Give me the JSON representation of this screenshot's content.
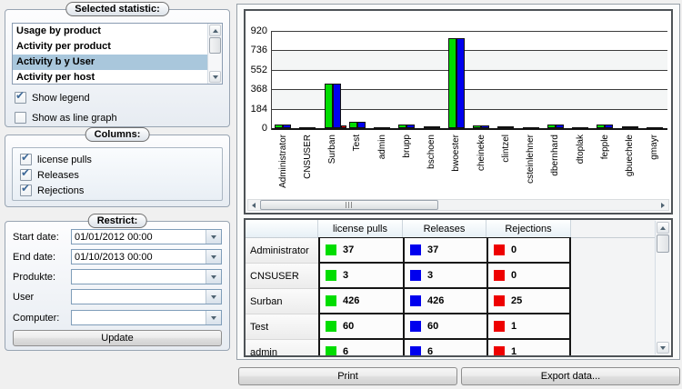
{
  "left_panel": {
    "statistic_group": {
      "caption": "Selected statistic:",
      "items": [
        "Usage by product",
        "Activity per product",
        "Activity b y User",
        "Activity per host"
      ],
      "selected_index": 2,
      "show_legend": {
        "label": "Show legend",
        "checked": true
      },
      "show_line_graph": {
        "label": "Show as line graph",
        "checked": false
      }
    },
    "columns_group": {
      "caption": "Columns:",
      "items": [
        "license pulls",
        "Releases",
        "Rejections"
      ],
      "checked": [
        true,
        true,
        true
      ]
    },
    "restrict_group": {
      "caption": "Restrict:",
      "fields": [
        {
          "label": "Start date:",
          "value": "01/01/2012 00:00"
        },
        {
          "label": "End date:",
          "value": "01/10/2013 00:00"
        },
        {
          "label": "Produkte:",
          "value": ""
        },
        {
          "label": "User",
          "value": ""
        },
        {
          "label": "Computer:",
          "value": ""
        }
      ],
      "update_label": "Update"
    }
  },
  "chart_data": {
    "type": "bar",
    "title": "",
    "xlabel": "",
    "ylabel": "",
    "ylim": [
      0,
      920
    ],
    "yticks": [
      0,
      184,
      368,
      552,
      736,
      920
    ],
    "grid": true,
    "legend_visible": false,
    "categories": [
      "Administrator",
      "CNSUSER",
      "Surban",
      "Test",
      "admin",
      "brupp",
      "bschoen",
      "bwoester",
      "cheineke",
      "clintzel",
      "csteinlehner",
      "dbernhard",
      "dtoplak",
      "fepple",
      "gbuechele",
      "gmayr"
    ],
    "series": [
      {
        "name": "license pulls",
        "color": "#00dd00",
        "values": [
          37,
          3,
          426,
          60,
          6,
          32,
          20,
          855,
          30,
          15,
          2,
          38,
          2,
          34,
          14,
          11
        ]
      },
      {
        "name": "Releases",
        "color": "#0000ee",
        "values": [
          37,
          3,
          426,
          60,
          6,
          32,
          20,
          855,
          30,
          15,
          2,
          38,
          2,
          34,
          14,
          11
        ]
      },
      {
        "name": "Rejections",
        "color": "#ee0000",
        "values": [
          0,
          0,
          25,
          1,
          1,
          0,
          0,
          0,
          0,
          0,
          0,
          0,
          0,
          0,
          0,
          0
        ]
      }
    ]
  },
  "table": {
    "columns": [
      "",
      "license pulls",
      "Releases",
      "Rejections"
    ],
    "series_colors": [
      "#00dd00",
      "#0000ee",
      "#ee0000"
    ],
    "rows": [
      {
        "label": "Administrator",
        "values": [
          37,
          37,
          0
        ]
      },
      {
        "label": "CNSUSER",
        "values": [
          3,
          3,
          0
        ]
      },
      {
        "label": "Surban",
        "values": [
          426,
          426,
          25
        ]
      },
      {
        "label": "Test",
        "values": [
          60,
          60,
          1
        ]
      },
      {
        "label": "admin",
        "values": [
          6,
          6,
          1
        ]
      }
    ]
  },
  "footer": {
    "print_label": "Print",
    "export_label": "Export data..."
  }
}
